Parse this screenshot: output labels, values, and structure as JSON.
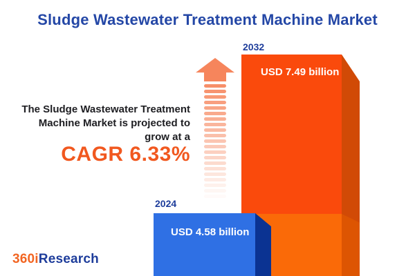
{
  "title": "Sludge Wastewater Treatment Machine Market",
  "description": {
    "lines": [
      "The Sludge Wastewater Treatment",
      "Machine Market is projected to",
      "grow at a"
    ],
    "cagr": "CAGR 6.33%"
  },
  "bars": [
    {
      "year": "2024",
      "value_label": "USD 4.58 billion"
    },
    {
      "year": "2032",
      "value_label": "USD 7.49 billion"
    }
  ],
  "logo": {
    "prefix": "360i",
    "suffix": "Research"
  },
  "arrow": {
    "name": "growth-up-arrow",
    "stripe_count": 21,
    "stripe_step": 8,
    "start_opacity": 0.92,
    "fade_step": 0.0445
  },
  "colors": {
    "title_blue": "#2447A6",
    "label_blue": "#1E3D9B",
    "text_dark": "#1E1E22",
    "cagr_orange": "#F1581F",
    "arrow_salmon": "#F6855C",
    "orange_top": "#FA4A0C",
    "orange_bottom": "#FA6A08",
    "orange_side_top": "#D14A06",
    "orange_side_bottom": "#DD5502",
    "blue_face": "#2F70E4",
    "blue_side": "#0B3392",
    "logo_orange": "#F26522",
    "logo_blue": "#1E3D9B"
  },
  "chart_data": {
    "type": "bar",
    "title": "Sludge Wastewater Treatment Machine Market",
    "categories": [
      "2024",
      "2032"
    ],
    "values": [
      4.58,
      7.49
    ],
    "unit": "USD billion",
    "value_labels": [
      "USD 4.58 billion",
      "USD 7.49 billion"
    ],
    "annotations": [
      "The Sludge Wastewater Treatment Machine Market is projected to grow at a CAGR 6.33%"
    ],
    "series_colors": [
      "#2F70E4",
      "#FA4A0C"
    ],
    "xlabel": "",
    "ylabel": "",
    "grid": false,
    "legend": false
  }
}
